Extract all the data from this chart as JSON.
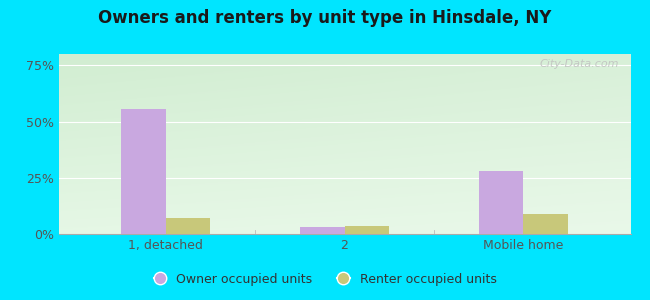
{
  "title": "Owners and renters by unit type in Hinsdale, NY",
  "categories": [
    "1, detached",
    "2",
    "Mobile home"
  ],
  "owner_values": [
    55.5,
    3.0,
    28.0
  ],
  "renter_values": [
    7.0,
    3.5,
    9.0
  ],
  "owner_color": "#c9a8e0",
  "renter_color": "#c8c87a",
  "yticks": [
    0,
    25,
    50,
    75
  ],
  "ytick_labels": [
    "0%",
    "25%",
    "50%",
    "75%"
  ],
  "ylim": [
    0,
    80
  ],
  "bg_topleft": "#d6edd6",
  "bg_topright": "#f0f8f0",
  "bg_bottomleft": "#c8e8c8",
  "bg_bottomright": "#eaf8ea",
  "outer_bg": "#00e5ff",
  "bar_width": 0.25,
  "legend_owner": "Owner occupied units",
  "legend_renter": "Renter occupied units",
  "watermark": "City-Data.com"
}
